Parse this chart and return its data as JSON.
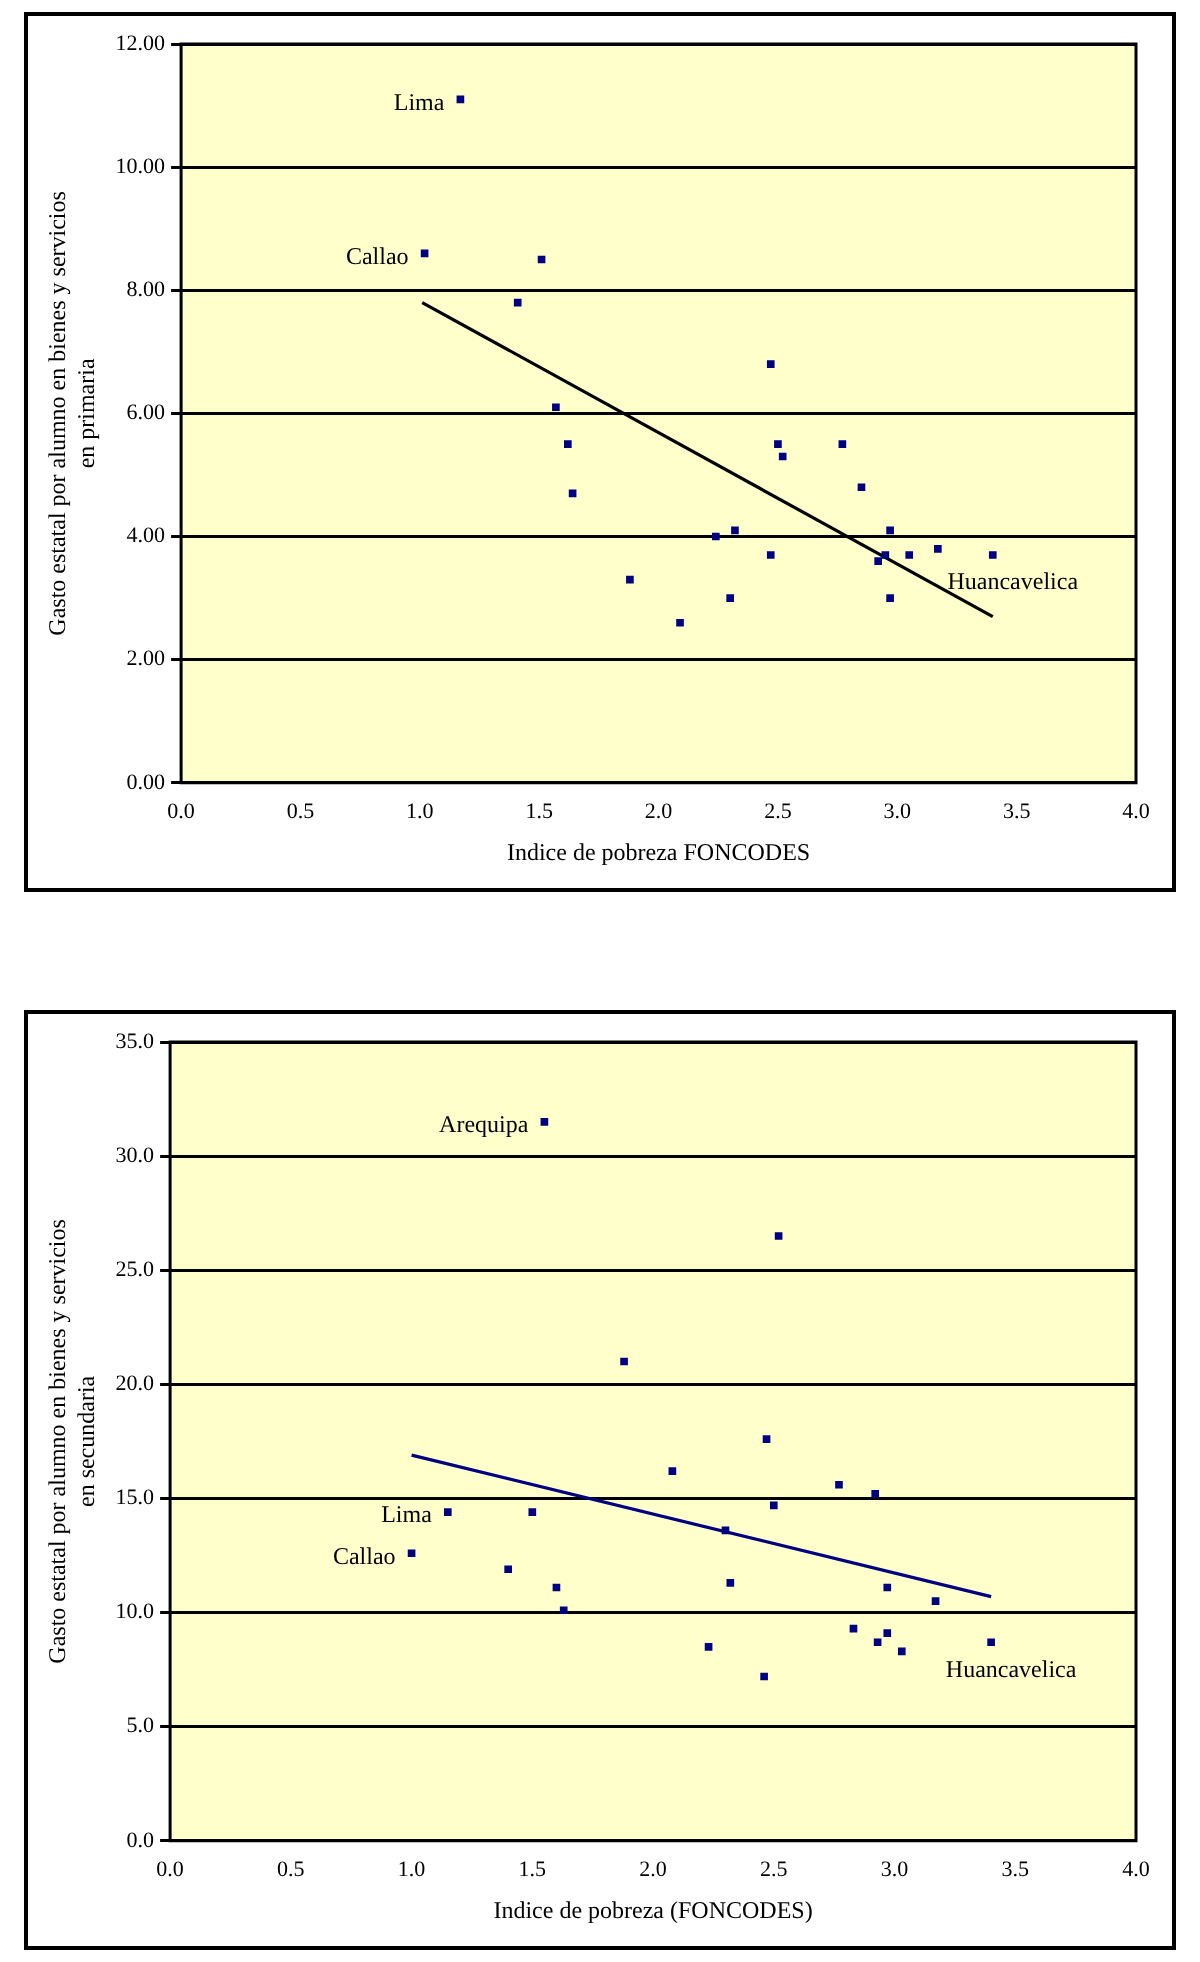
{
  "chart_data": [
    {
      "type": "scatter",
      "xlabel": "Indice de pobreza FONCODES",
      "ylabel": "Gasto estatal por alumno en bienes y servicios en primaria",
      "xlim": [
        0,
        4
      ],
      "xticks": [
        {
          "value": 0,
          "label": "0.0"
        },
        {
          "value": 0.5,
          "label": "0.5"
        },
        {
          "value": 1,
          "label": "1.0"
        },
        {
          "value": 1.5,
          "label": "1.5"
        },
        {
          "value": 2,
          "label": "2.0"
        },
        {
          "value": 2.5,
          "label": "2.5"
        },
        {
          "value": 3,
          "label": "3.0"
        },
        {
          "value": 3.5,
          "label": "3.5"
        },
        {
          "value": 4,
          "label": "4.0"
        }
      ],
      "ylim": [
        0,
        12
      ],
      "yticks": [
        {
          "value": 0,
          "label": "0.00"
        },
        {
          "value": 2,
          "label": "2.00"
        },
        {
          "value": 4,
          "label": "4.00"
        },
        {
          "value": 6,
          "label": "6.00"
        },
        {
          "value": 8,
          "label": "8.00"
        },
        {
          "value": 10,
          "label": "10.00"
        },
        {
          "value": 12,
          "label": "12.00"
        }
      ],
      "grid": "y",
      "legend": false,
      "series": [
        {
          "color": "#000080",
          "marker": "square",
          "x": [
            1.17,
            1.02,
            1.51,
            1.41,
            1.57,
            1.62,
            1.64,
            1.88,
            2.09,
            2.24,
            2.32,
            2.3,
            2.47,
            2.47,
            2.5,
            2.52,
            2.77,
            2.85,
            2.97,
            2.92,
            2.95,
            2.97,
            3.05,
            3.17,
            3.4
          ],
          "values": [
            11.1,
            8.6,
            8.5,
            7.8,
            6.1,
            5.5,
            4.7,
            3.3,
            2.6,
            4.0,
            4.1,
            3.0,
            6.8,
            3.7,
            5.5,
            5.3,
            5.5,
            4.8,
            4.1,
            3.6,
            3.7,
            3.0,
            3.7,
            3.8,
            3.7
          ]
        },
        {
          "type": "line",
          "marker": "none",
          "color": "#000000",
          "x": [
            1.01,
            3.4
          ],
          "values": [
            7.8,
            2.7
          ]
        }
      ],
      "annotations": [
        {
          "text": "Lima",
          "x": 1.17,
          "y": 11.1
        },
        {
          "text": "Callao",
          "x": 1.02,
          "y": 8.6
        },
        {
          "text": "Huancavelica",
          "x": 3.4,
          "y": 3.7
        }
      ]
    },
    {
      "type": "scatter",
      "xlabel": "Indice de pobreza (FONCODES)",
      "ylabel": "Gasto estatal por alumno en bienes y servicios en secundaria",
      "xlim": [
        0,
        4
      ],
      "xticks": [
        {
          "value": 0,
          "label": "0.0"
        },
        {
          "value": 0.5,
          "label": "0.5"
        },
        {
          "value": 1,
          "label": "1.0"
        },
        {
          "value": 1.5,
          "label": "1.5"
        },
        {
          "value": 2,
          "label": "2.0"
        },
        {
          "value": 2.5,
          "label": "2.5"
        },
        {
          "value": 3,
          "label": "3.0"
        },
        {
          "value": 3.5,
          "label": "3.5"
        },
        {
          "value": 4,
          "label": "4.0"
        }
      ],
      "ylim": [
        0,
        35
      ],
      "yticks": [
        {
          "value": 0,
          "label": "0.0"
        },
        {
          "value": 5,
          "label": "5.0"
        },
        {
          "value": 10,
          "label": "10.0"
        },
        {
          "value": 15,
          "label": "15.0"
        },
        {
          "value": 20,
          "label": "20.0"
        },
        {
          "value": 25,
          "label": "25.0"
        },
        {
          "value": 30,
          "label": "30.0"
        },
        {
          "value": 35,
          "label": "35.0"
        }
      ],
      "grid": "y",
      "legend": false,
      "series": [
        {
          "color": "#000080",
          "marker": "square",
          "x": [
            1.55,
            2.52,
            1.88,
            2.08,
            2.47,
            2.77,
            2.92,
            2.5,
            2.3,
            1.15,
            1.5,
            1.0,
            1.4,
            1.6,
            1.63,
            2.32,
            2.97,
            3.17,
            2.83,
            2.93,
            2.97,
            3.03,
            3.4,
            2.23,
            2.46
          ],
          "values": [
            31.5,
            26.5,
            21.0,
            16.2,
            17.6,
            15.6,
            15.2,
            14.7,
            13.6,
            14.4,
            14.4,
            12.6,
            11.9,
            11.1,
            10.1,
            11.3,
            11.1,
            10.5,
            9.3,
            8.7,
            9.1,
            8.3,
            8.7,
            8.5,
            7.2
          ]
        },
        {
          "type": "line",
          "marker": "none",
          "color": "#000080",
          "x": [
            1.0,
            3.4
          ],
          "values": [
            16.9,
            10.7
          ]
        }
      ],
      "annotations": [
        {
          "text": "Arequipa",
          "x": 1.55,
          "y": 31.5
        },
        {
          "text": "Lima",
          "x": 1.15,
          "y": 14.4
        },
        {
          "text": "Callao",
          "x": 1.0,
          "y": 12.6
        },
        {
          "text": "Huancavelica",
          "x": 3.4,
          "y": 8.7
        }
      ]
    }
  ]
}
